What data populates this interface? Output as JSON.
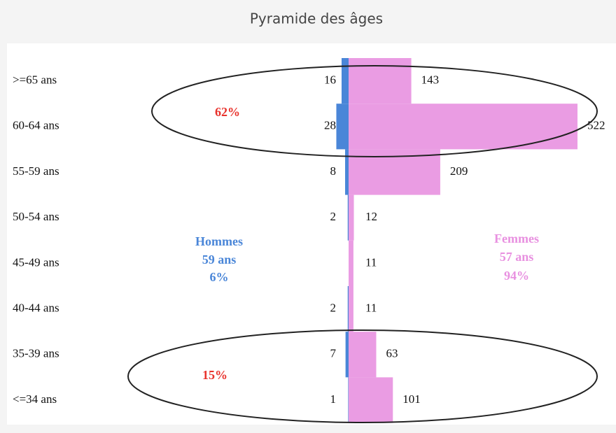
{
  "chart_data": {
    "type": "pyramid",
    "title": "Pyramide des âges",
    "categories": [
      ">=65 ans",
      "60-64 ans",
      "55-59 ans",
      "50-54 ans",
      "45-49 ans",
      "40-44 ans",
      "35-39 ans",
      "<=34 ans"
    ],
    "series": [
      {
        "name": "Hommes",
        "color": "#4a86d8",
        "values": [
          16,
          28,
          8,
          2,
          null,
          2,
          7,
          1
        ]
      },
      {
        "name": "Femmes",
        "color": "#ea9ce3",
        "values": [
          143,
          522,
          209,
          12,
          11,
          11,
          63,
          101
        ]
      }
    ],
    "annotations": [
      {
        "text": "62%",
        "color": "#e8322c"
      },
      {
        "text": "15%",
        "color": "#e8322c"
      },
      {
        "text": "Hommes",
        "color": "#4a86d8"
      },
      {
        "text": "59 ans",
        "color": "#4a86d8"
      },
      {
        "text": "6%",
        "color": "#4a86d8"
      },
      {
        "text": "Femmes",
        "color": "#e890e0"
      },
      {
        "text": "57 ans",
        "color": "#e890e0"
      },
      {
        "text": "94%",
        "color": "#e890e0"
      }
    ]
  }
}
